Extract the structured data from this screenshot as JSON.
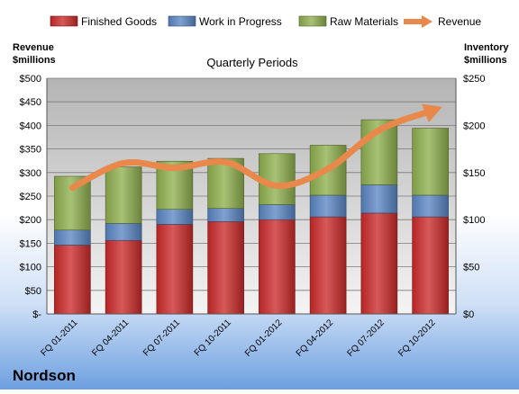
{
  "company": "Nordson",
  "chart_data": {
    "type": "bar",
    "title": "Quarterly Periods",
    "left_axis_label": [
      "Revenue",
      "$millions"
    ],
    "right_axis_label": [
      "Inventory",
      "$millions"
    ],
    "categories": [
      "FQ 01-2011",
      "FQ 04-2011",
      "FQ 07-2011",
      "FQ 10-2011",
      "FQ 01-2012",
      "FQ 04-2012",
      "FQ 07-2012",
      "FQ 10-2012"
    ],
    "series": [
      {
        "name": "Finished Goods",
        "kind": "stacked-bar",
        "axis": "right",
        "color": "#cc2a2a",
        "values": [
          73,
          78,
          95,
          98,
          100,
          103,
          107,
          103
        ]
      },
      {
        "name": "Work in Progress",
        "kind": "stacked-bar",
        "axis": "right",
        "color": "#5b86c4",
        "values": [
          16,
          18,
          16,
          14,
          16,
          23,
          30,
          23
        ]
      },
      {
        "name": "Raw Materials",
        "kind": "stacked-bar",
        "axis": "right",
        "color": "#8fb04e",
        "values": [
          57,
          60,
          51,
          53,
          54,
          53,
          69,
          71
        ]
      },
      {
        "name": "Revenue",
        "kind": "line",
        "axis": "left",
        "color": "#e8884a",
        "values": [
          268,
          320,
          310,
          322,
          272,
          308,
          390,
          430
        ]
      }
    ],
    "left_axis": {
      "min": 0,
      "max": 500,
      "step": 50,
      "ticks": [
        "$-",
        "$50",
        "$100",
        "$150",
        "$200",
        "$250",
        "$300",
        "$350",
        "$400",
        "$450",
        "$500"
      ]
    },
    "right_axis": {
      "min": 0,
      "max": 250,
      "step": 50,
      "ticks": [
        "$0",
        "$50",
        "$100",
        "$150",
        "$200",
        "$250"
      ]
    },
    "grid": true,
    "legend_position": "top"
  }
}
